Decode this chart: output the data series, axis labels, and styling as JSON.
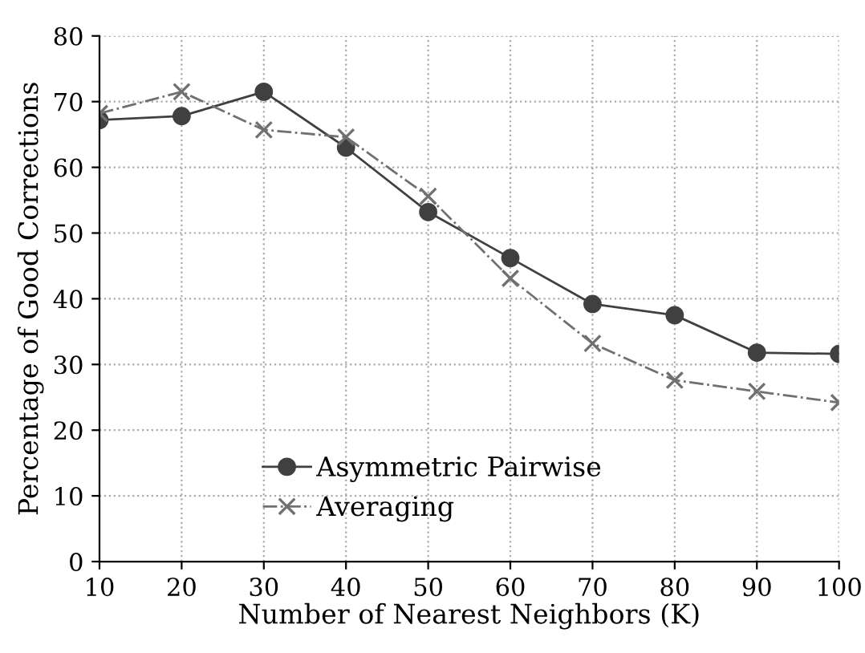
{
  "chart_data": {
    "type": "line",
    "xlabel": "Number of Nearest Neighbors (K)",
    "ylabel": "Percentage of Good Corrections",
    "x": [
      10,
      20,
      30,
      40,
      50,
      60,
      70,
      80,
      90,
      100
    ],
    "series": [
      {
        "name": "Asymmetric Pairwise",
        "color": "#404040",
        "marker": "circle",
        "line_style": "solid",
        "values": [
          67.2,
          67.8,
          71.5,
          63,
          53.2,
          46.2,
          39.2,
          37.5,
          31.8,
          31.6
        ]
      },
      {
        "name": "Averaging",
        "color": "#707070",
        "marker": "cross",
        "line_style": "dashdot",
        "values": [
          68.2,
          71.5,
          65.7,
          64.6,
          55.6,
          43.1,
          33.2,
          27.6,
          25.9,
          24.2
        ]
      }
    ],
    "xlim": [
      10,
      100
    ],
    "ylim": [
      0,
      80
    ],
    "xticks": [
      10,
      20,
      30,
      40,
      50,
      60,
      70,
      80,
      90,
      100
    ],
    "yticks": [
      0,
      10,
      20,
      30,
      40,
      50,
      60,
      70,
      80
    ],
    "grid": true,
    "legend": "bottom"
  }
}
